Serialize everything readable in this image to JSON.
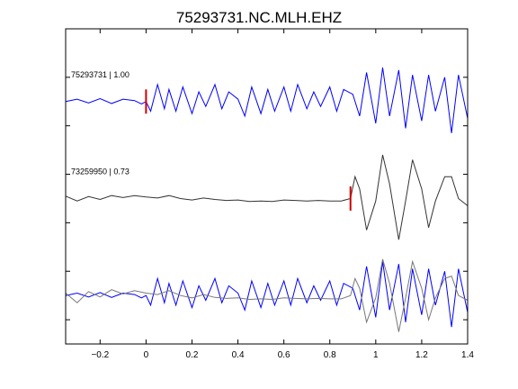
{
  "chart_data": {
    "type": "line",
    "title": "75293731.NC.MLH.EHZ",
    "xlabel": "",
    "ylabel": "",
    "xlim": [
      -0.35,
      1.4
    ],
    "xticks": [
      -0.2,
      0,
      0.2,
      0.4,
      0.6,
      0.8,
      1,
      1.2,
      1.4
    ],
    "xtick_labels": [
      "−0.2",
      "0",
      "0.2",
      "0.4",
      "0.6",
      "0.8",
      "1",
      "1.2",
      "1.4"
    ],
    "ylim": [
      0,
      6.5
    ],
    "yticks": [
      0.5,
      1.5,
      2.5,
      3.5,
      4.5,
      5.5,
      6.5
    ],
    "grid": false,
    "colors": {
      "blue": "#0000ff",
      "black": "#333333",
      "gray": "#777777",
      "pick": "#d00000"
    },
    "traces": [
      {
        "label": "75293731 | 1.00",
        "color": "blue",
        "offset": 5,
        "pick": 0.0,
        "x": [
          -0.35,
          -0.3,
          -0.25,
          -0.2,
          -0.15,
          -0.1,
          -0.05,
          -0.02,
          0.0,
          0.02,
          0.05,
          0.08,
          0.1,
          0.13,
          0.16,
          0.2,
          0.23,
          0.26,
          0.3,
          0.33,
          0.36,
          0.4,
          0.43,
          0.46,
          0.5,
          0.53,
          0.56,
          0.6,
          0.63,
          0.66,
          0.7,
          0.73,
          0.76,
          0.8,
          0.83,
          0.86,
          0.9,
          0.93,
          0.96,
          1.0,
          1.03,
          1.06,
          1.1,
          1.13,
          1.16,
          1.2,
          1.23,
          1.26,
          1.3,
          1.33,
          1.36,
          1.4
        ],
        "y": [
          0.0,
          0.05,
          -0.03,
          0.06,
          -0.04,
          0.05,
          0.02,
          -0.05,
          0.0,
          -0.2,
          0.35,
          -0.15,
          0.25,
          -0.2,
          0.3,
          -0.25,
          0.2,
          -0.1,
          0.35,
          -0.15,
          0.2,
          0.05,
          -0.3,
          0.3,
          -0.25,
          0.25,
          -0.2,
          0.3,
          -0.2,
          0.35,
          -0.15,
          0.2,
          -0.1,
          0.3,
          -0.2,
          0.25,
          0.15,
          -0.3,
          0.6,
          -0.45,
          0.7,
          -0.3,
          0.65,
          -0.55,
          0.55,
          -0.4,
          0.55,
          -0.2,
          0.5,
          -0.65,
          0.55,
          -0.35
        ]
      },
      {
        "label": "73259950 | 0.73",
        "color": "black",
        "offset": 3,
        "pick": 0.89,
        "x": [
          -0.35,
          -0.3,
          -0.25,
          -0.2,
          -0.15,
          -0.1,
          -0.05,
          0.0,
          0.05,
          0.1,
          0.15,
          0.2,
          0.25,
          0.3,
          0.35,
          0.4,
          0.45,
          0.5,
          0.55,
          0.6,
          0.65,
          0.7,
          0.75,
          0.8,
          0.85,
          0.89,
          0.91,
          0.93,
          0.96,
          1.0,
          1.03,
          1.06,
          1.1,
          1.13,
          1.16,
          1.2,
          1.23,
          1.26,
          1.3,
          1.33,
          1.36,
          1.4
        ],
        "y": [
          0.05,
          -0.05,
          0.04,
          -0.02,
          0.06,
          0.02,
          0.06,
          0.03,
          0.01,
          0.06,
          0.0,
          -0.03,
          0.01,
          -0.02,
          -0.04,
          -0.03,
          -0.06,
          -0.05,
          -0.06,
          -0.03,
          -0.04,
          -0.05,
          -0.04,
          -0.05,
          -0.05,
          0.0,
          0.45,
          0.2,
          -0.65,
          -0.05,
          0.9,
          0.3,
          -0.85,
          -0.05,
          0.8,
          0.2,
          -0.6,
          -0.05,
          0.45,
          0.45,
          0.0,
          -0.15
        ]
      },
      {
        "label": "",
        "color": "blue",
        "offset": 1,
        "pick": null,
        "x": [
          -0.35,
          -0.3,
          -0.25,
          -0.2,
          -0.15,
          -0.1,
          -0.05,
          -0.02,
          0.0,
          0.02,
          0.05,
          0.08,
          0.1,
          0.13,
          0.16,
          0.2,
          0.23,
          0.26,
          0.3,
          0.33,
          0.36,
          0.4,
          0.43,
          0.46,
          0.5,
          0.53,
          0.56,
          0.6,
          0.63,
          0.66,
          0.7,
          0.73,
          0.76,
          0.8,
          0.83,
          0.86,
          0.9,
          0.93,
          0.96,
          1.0,
          1.03,
          1.06,
          1.1,
          1.13,
          1.16,
          1.2,
          1.23,
          1.26,
          1.3,
          1.33,
          1.36,
          1.4
        ],
        "y": [
          0.0,
          0.05,
          -0.03,
          0.06,
          -0.04,
          0.05,
          0.02,
          -0.05,
          0.0,
          -0.2,
          0.35,
          -0.15,
          0.25,
          -0.2,
          0.3,
          -0.25,
          0.2,
          -0.1,
          0.35,
          -0.15,
          0.2,
          0.05,
          -0.3,
          0.3,
          -0.25,
          0.25,
          -0.2,
          0.3,
          -0.2,
          0.35,
          -0.15,
          0.2,
          -0.1,
          0.3,
          -0.2,
          0.25,
          0.15,
          -0.3,
          0.6,
          -0.45,
          0.7,
          -0.3,
          0.65,
          -0.55,
          0.55,
          -0.4,
          0.55,
          -0.2,
          0.5,
          -0.65,
          0.55,
          -0.35
        ]
      },
      {
        "label": "",
        "color": "gray",
        "offset": 1,
        "pick": null,
        "x": [
          -0.35,
          -0.3,
          -0.25,
          -0.2,
          -0.15,
          -0.1,
          -0.05,
          0.0,
          0.05,
          0.1,
          0.15,
          0.2,
          0.25,
          0.3,
          0.35,
          0.4,
          0.45,
          0.5,
          0.55,
          0.6,
          0.65,
          0.7,
          0.75,
          0.8,
          0.85,
          0.89,
          0.91,
          0.93,
          0.96,
          1.0,
          1.03,
          1.06,
          1.1,
          1.13,
          1.16,
          1.2,
          1.23,
          1.26,
          1.3,
          1.33,
          1.36,
          1.4
        ],
        "y": [
          0.05,
          -0.15,
          0.08,
          -0.03,
          0.12,
          0.03,
          0.1,
          0.05,
          0.02,
          0.1,
          0.0,
          -0.05,
          0.02,
          -0.04,
          -0.06,
          -0.05,
          -0.08,
          -0.07,
          -0.08,
          -0.05,
          -0.06,
          -0.07,
          -0.06,
          -0.07,
          -0.07,
          0.0,
          0.35,
          0.15,
          -0.55,
          -0.05,
          0.75,
          0.25,
          -0.75,
          -0.05,
          0.7,
          0.15,
          -0.5,
          -0.05,
          0.35,
          0.4,
          0.0,
          -0.1
        ]
      }
    ]
  }
}
